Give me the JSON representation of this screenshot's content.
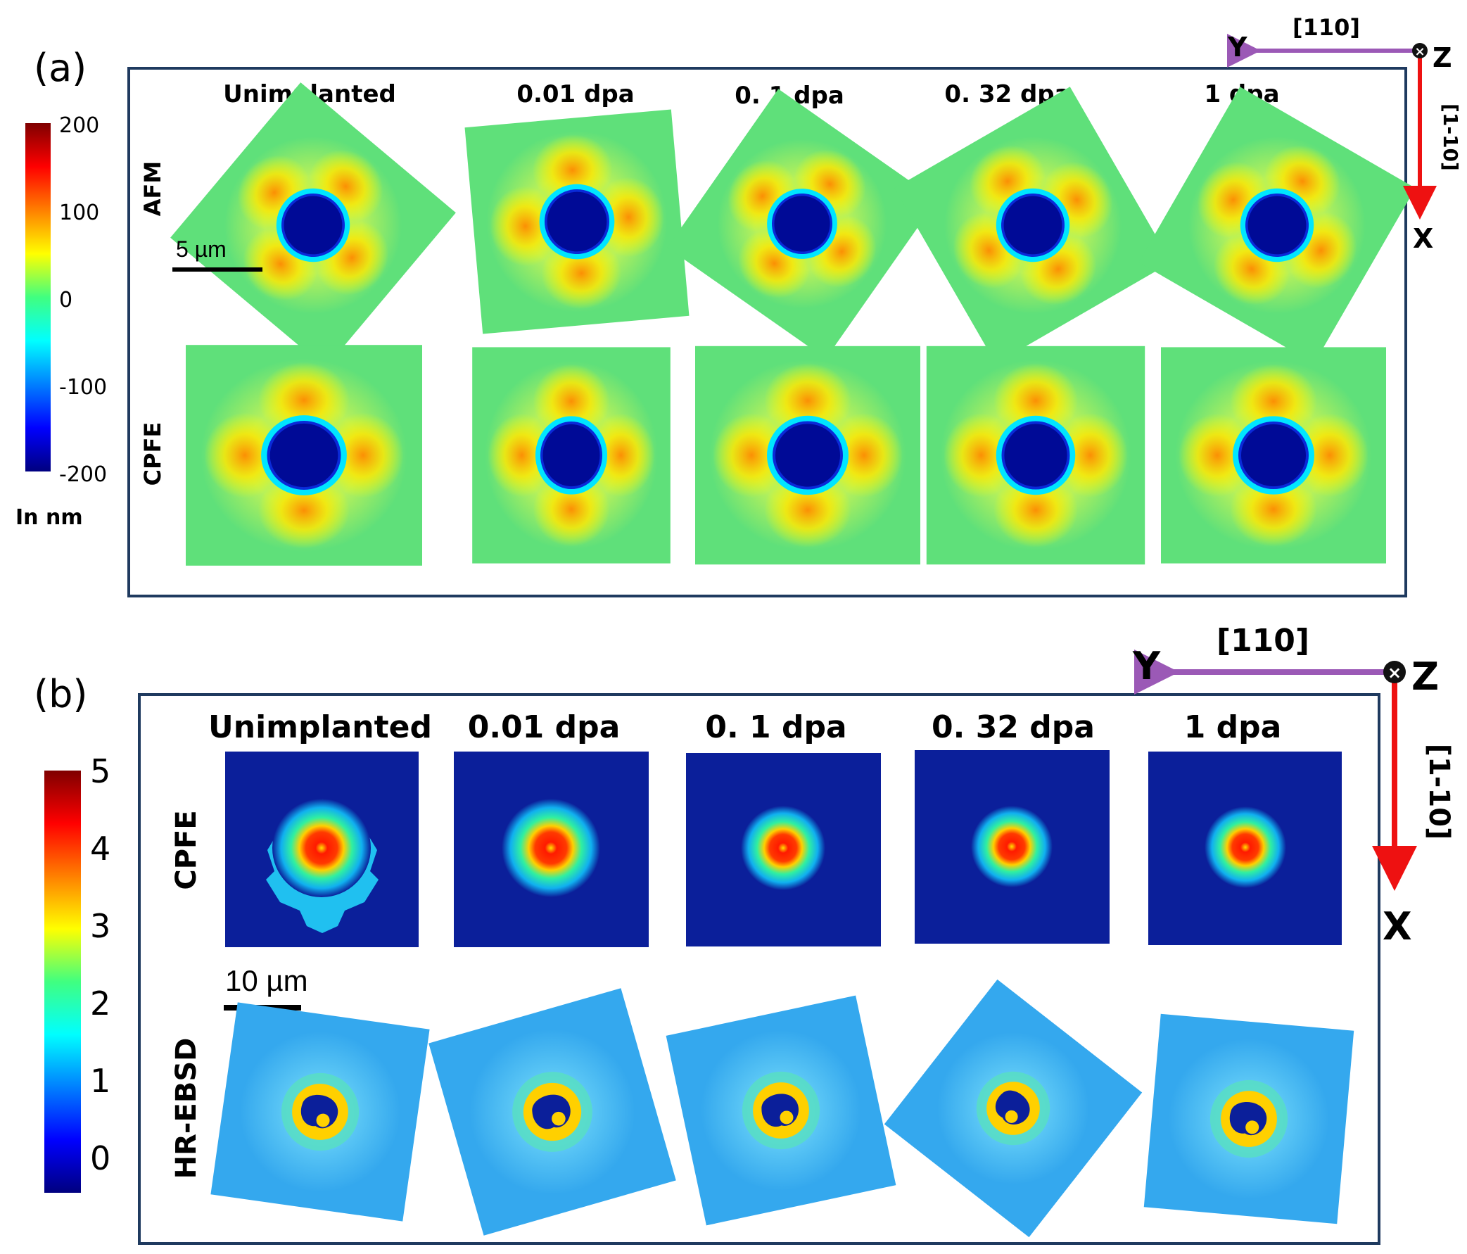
{
  "panel_a": {
    "label": "(a)",
    "columns": [
      "Unimplanted",
      "0.01 dpa",
      "0. 1 dpa",
      "0. 32 dpa",
      "1 dpa"
    ],
    "rows": [
      "AFM",
      "CPFE"
    ],
    "scale_bar": "5 µm",
    "colorbar": {
      "ticks": [
        "200",
        "100",
        "0",
        "-100",
        "-200"
      ],
      "unit": "In nm"
    },
    "axes": {
      "y": "Y",
      "x": "X",
      "z": "Z",
      "dir_horizontal": "[110]",
      "dir_vertical": "[1-10]"
    }
  },
  "panel_b": {
    "label": "(b)",
    "columns": [
      "Unimplanted",
      "0.01 dpa",
      "0. 1 dpa",
      "0. 32 dpa",
      "1 dpa"
    ],
    "rows": [
      "CPFE",
      "HR-EBSD"
    ],
    "scale_bar": "10 µm",
    "colorbar": {
      "ticks": [
        "5",
        "4",
        "3",
        "2",
        "1",
        "0"
      ]
    },
    "axes": {
      "y": "Y",
      "x": "X",
      "z": "Z",
      "dir_horizontal": "[110]",
      "dir_vertical": "[1-10]"
    }
  },
  "colors": {
    "frame": "#1f3a5f",
    "axis_arrow_h": "#9b59b6",
    "axis_arrow_v": "#ee1111",
    "map_bg_a": "#5fe07a",
    "map_bg_b_cpfe": "#0b1f9a",
    "map_bg_b_ebsd": "#34a8ee"
  }
}
